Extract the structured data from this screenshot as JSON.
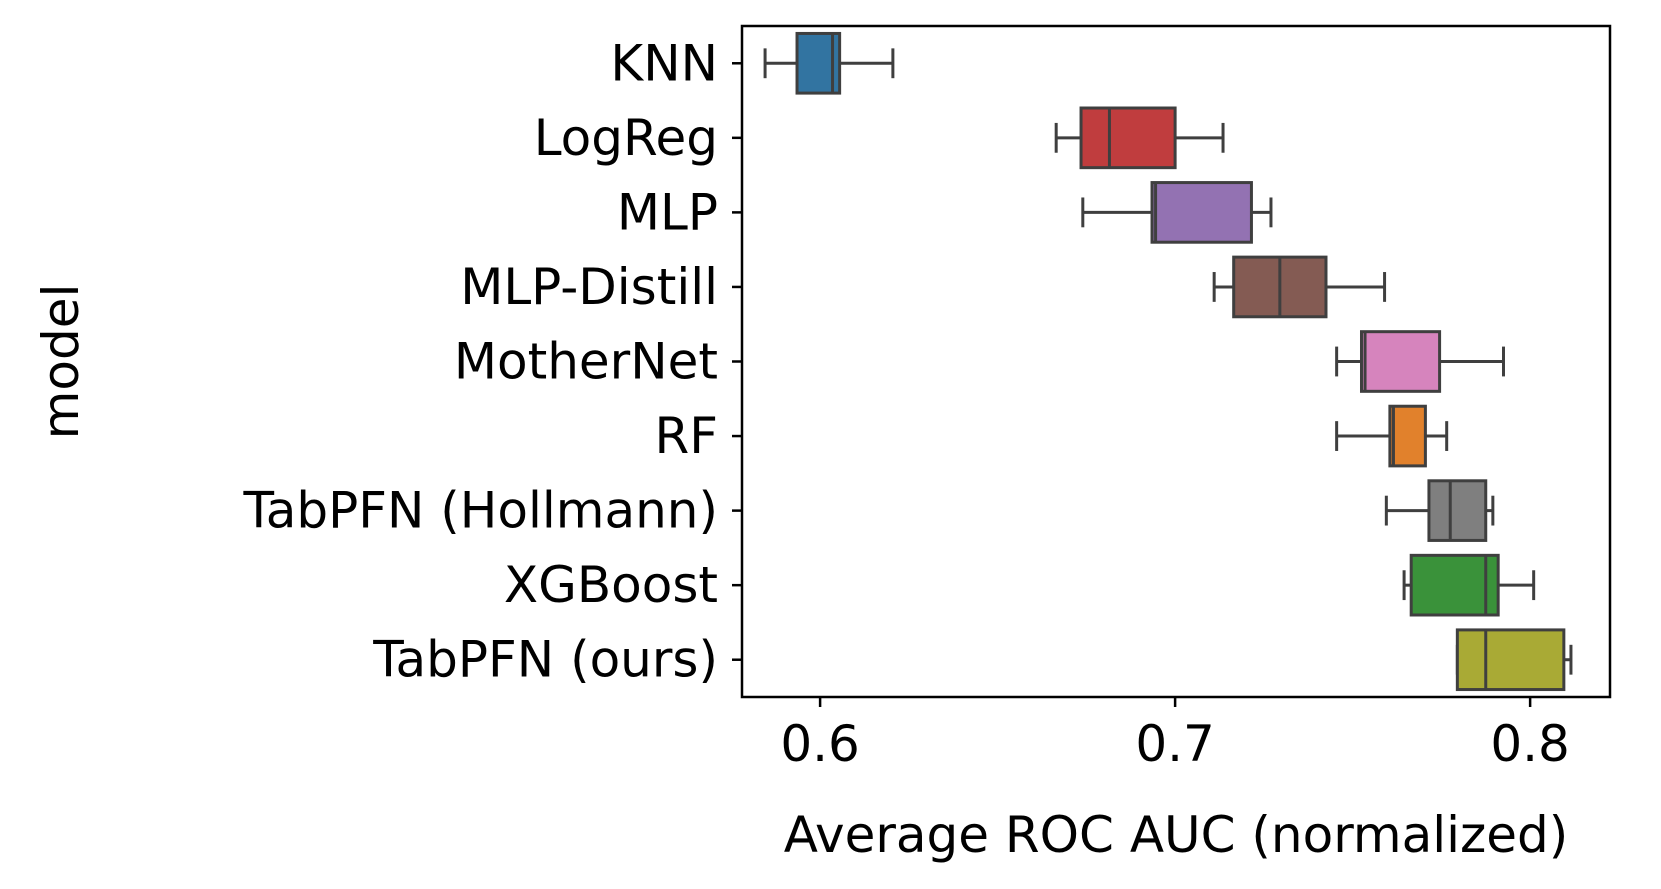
{
  "chart_data": {
    "type": "boxplot",
    "orientation": "horizontal",
    "xlabel": "Average ROC AUC (normalized)",
    "ylabel": "model",
    "xlim": [
      0.578,
      0.8225
    ],
    "xticks": [
      0.6,
      0.7,
      0.8
    ],
    "xtick_labels": [
      "0.6",
      "0.7",
      "0.8"
    ],
    "grid": false,
    "categories": [
      "KNN",
      "LogReg",
      "MLP",
      "MLP-Distill",
      "MotherNet",
      "RF",
      "TabPFN (Hollmann)",
      "XGBoost",
      "TabPFN (ours)"
    ],
    "boxes": [
      {
        "label": "KNN",
        "whislo": 0.5845,
        "q1": 0.5935,
        "med": 0.6035,
        "q3": 0.6055,
        "whishi": 0.6205,
        "color": "#3274a1"
      },
      {
        "label": "LogReg",
        "whislo": 0.6665,
        "q1": 0.6735,
        "med": 0.6815,
        "q3": 0.7,
        "whishi": 0.7135,
        "color": "#c03d3e"
      },
      {
        "label": "MLP",
        "whislo": 0.674,
        "q1": 0.6935,
        "med": 0.6945,
        "q3": 0.7215,
        "whishi": 0.727,
        "color": "#9372b2"
      },
      {
        "label": "MLP-Distill",
        "whislo": 0.711,
        "q1": 0.7165,
        "med": 0.7295,
        "q3": 0.7425,
        "whishi": 0.759,
        "color": "#845b53"
      },
      {
        "label": "MotherNet",
        "whislo": 0.7455,
        "q1": 0.7525,
        "med": 0.7535,
        "q3": 0.7745,
        "whishi": 0.7925,
        "color": "#d684bd"
      },
      {
        "label": "RF",
        "whislo": 0.7455,
        "q1": 0.7605,
        "med": 0.7615,
        "q3": 0.7705,
        "whishi": 0.7765,
        "color": "#e1812c"
      },
      {
        "label": "TabPFN (Hollmann)",
        "whislo": 0.7595,
        "q1": 0.7715,
        "med": 0.7775,
        "q3": 0.7875,
        "whishi": 0.7895,
        "color": "#7f7f7f"
      },
      {
        "label": "XGBoost",
        "whislo": 0.7645,
        "q1": 0.7665,
        "med": 0.7875,
        "q3": 0.791,
        "whishi": 0.801,
        "color": "#3a923a"
      },
      {
        "label": "TabPFN (ours)",
        "whislo": 0.7795,
        "q1": 0.7795,
        "med": 0.7875,
        "q3": 0.8095,
        "whishi": 0.8115,
        "color": "#a9aa35"
      }
    ]
  }
}
